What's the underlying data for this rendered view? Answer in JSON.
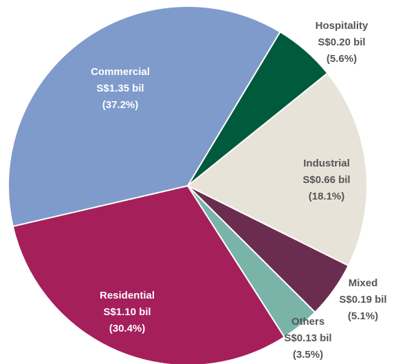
{
  "chart_data": {
    "type": "pie",
    "categories": [
      "Hospitality",
      "Industrial",
      "Mixed",
      "Others",
      "Residential",
      "Commercial"
    ],
    "values": [
      5.6,
      18.1,
      5.1,
      3.5,
      30.4,
      37.2
    ],
    "value_labels": [
      "(5.6%)",
      "(18.1%)",
      "(5.1%)",
      "(3.5%)",
      "(30.4%)",
      "(37.2%)"
    ],
    "amounts": [
      0.2,
      0.66,
      0.19,
      0.13,
      1.1,
      1.35
    ],
    "amount_labels": [
      "S$0.20 bil",
      "S$0.66 bil",
      "S$0.19 bil",
      "S$0.13 bil",
      "S$1.10 bil",
      "S$1.35 bil"
    ],
    "colors": [
      "#005a3c",
      "#e8e3d8",
      "#6b2d4f",
      "#7ab4a8",
      "#a51f5b",
      "#7f9bcb"
    ],
    "label_colors": [
      "#555555",
      "#555555",
      "#555555",
      "#555555",
      "#ffffff",
      "#ffffff"
    ]
  }
}
